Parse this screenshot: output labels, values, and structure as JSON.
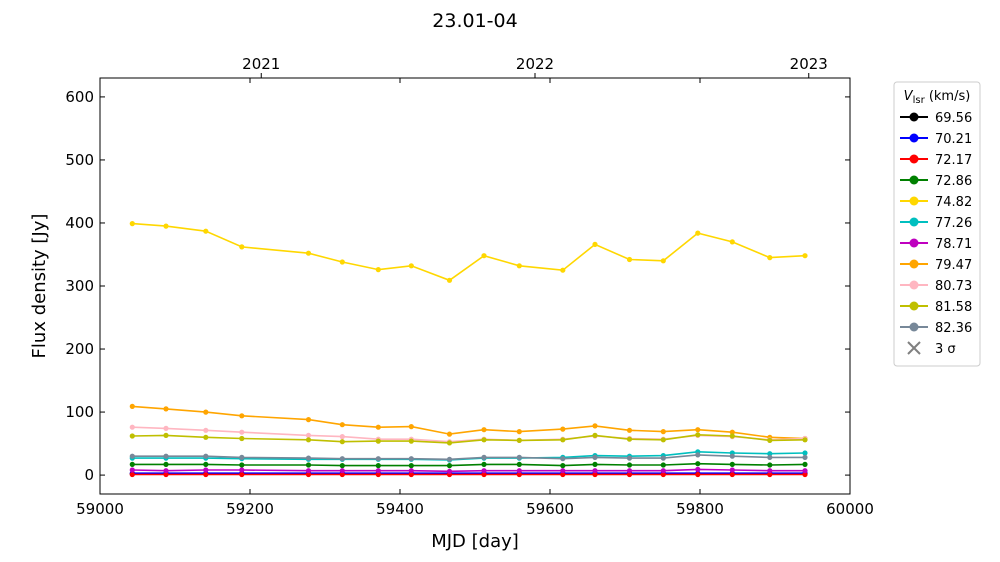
{
  "chart_data": {
    "type": "line",
    "title": "23.01-04",
    "xlabel": "MJD [day]",
    "ylabel": "Flux density [Jy]",
    "xlim": [
      59000,
      60000
    ],
    "ylim": [
      -30,
      630
    ],
    "xticks": [
      59000,
      59200,
      59400,
      59600,
      59800,
      60000
    ],
    "yticks": [
      0,
      100,
      200,
      300,
      400,
      500,
      600
    ],
    "top_axis": {
      "ticks": [
        {
          "label": "2021",
          "mjd": 59215
        },
        {
          "label": "2022",
          "mjd": 59580
        },
        {
          "label": "2023",
          "mjd": 59945
        }
      ]
    },
    "legend": {
      "title_main": "V",
      "title_sub": "lsr",
      "title_unit": " (km/s)",
      "position": "outside-right",
      "sigma_label": "3 σ"
    },
    "x": [
      59043,
      59088,
      59141,
      59189,
      59278,
      59323,
      59371,
      59415,
      59466,
      59512,
      59559,
      59617,
      59660,
      59706,
      59751,
      59797,
      59843,
      59893,
      59940
    ],
    "series": [
      {
        "name": "69.56",
        "color": "#000000",
        "values": [
          2,
          2,
          2,
          2,
          2,
          2,
          2,
          2,
          2,
          2,
          2,
          2,
          2,
          2,
          2,
          2,
          2,
          2,
          2
        ]
      },
      {
        "name": "70.21",
        "color": "#0000ff",
        "values": [
          3,
          3,
          3,
          3,
          3,
          3,
          3,
          3,
          3,
          3,
          3,
          3,
          3,
          3,
          3,
          3,
          3,
          3,
          3
        ]
      },
      {
        "name": "72.17",
        "color": "#ff0000",
        "values": [
          1,
          1,
          1,
          1,
          1,
          1,
          1,
          1,
          1,
          1,
          1,
          1,
          1,
          1,
          1,
          1,
          1,
          1,
          1
        ]
      },
      {
        "name": "72.86",
        "color": "#008000",
        "values": [
          17,
          17,
          17,
          16,
          16,
          15,
          15,
          15,
          15,
          17,
          17,
          15,
          17,
          16,
          16,
          18,
          17,
          16,
          17
        ]
      },
      {
        "name": "74.82",
        "color": "#ffd700",
        "values": [
          399,
          395,
          387,
          362,
          352,
          338,
          326,
          332,
          309,
          348,
          332,
          325,
          366,
          342,
          340,
          384,
          370,
          345,
          348
        ]
      },
      {
        "name": "77.26",
        "color": "#00bfbf",
        "values": [
          27,
          27,
          27,
          26,
          25,
          25,
          25,
          25,
          24,
          27,
          27,
          28,
          31,
          30,
          31,
          37,
          35,
          34,
          35
        ]
      },
      {
        "name": "78.71",
        "color": "#bf00bf",
        "values": [
          8,
          7,
          8,
          8,
          7,
          7,
          7,
          7,
          6,
          7,
          7,
          7,
          7,
          7,
          7,
          9,
          8,
          7,
          7
        ]
      },
      {
        "name": "79.47",
        "color": "#ffa500",
        "values": [
          109,
          105,
          100,
          94,
          88,
          80,
          76,
          77,
          65,
          72,
          69,
          73,
          78,
          71,
          69,
          72,
          68,
          60,
          58
        ]
      },
      {
        "name": "80.73",
        "color": "#ffb6c1",
        "values": [
          76,
          74,
          71,
          68,
          63,
          61,
          57,
          57,
          53,
          57,
          55,
          57,
          62,
          58,
          57,
          63,
          61,
          56,
          58
        ]
      },
      {
        "name": "81.58",
        "color": "#bfbf00",
        "values": [
          62,
          63,
          60,
          58,
          56,
          53,
          54,
          54,
          51,
          56,
          55,
          56,
          63,
          57,
          56,
          64,
          62,
          55,
          56
        ]
      },
      {
        "name": "82.36",
        "color": "#778899",
        "values": [
          30,
          30,
          30,
          28,
          27,
          26,
          26,
          26,
          25,
          28,
          28,
          26,
          28,
          27,
          27,
          32,
          30,
          28,
          28
        ]
      }
    ]
  }
}
